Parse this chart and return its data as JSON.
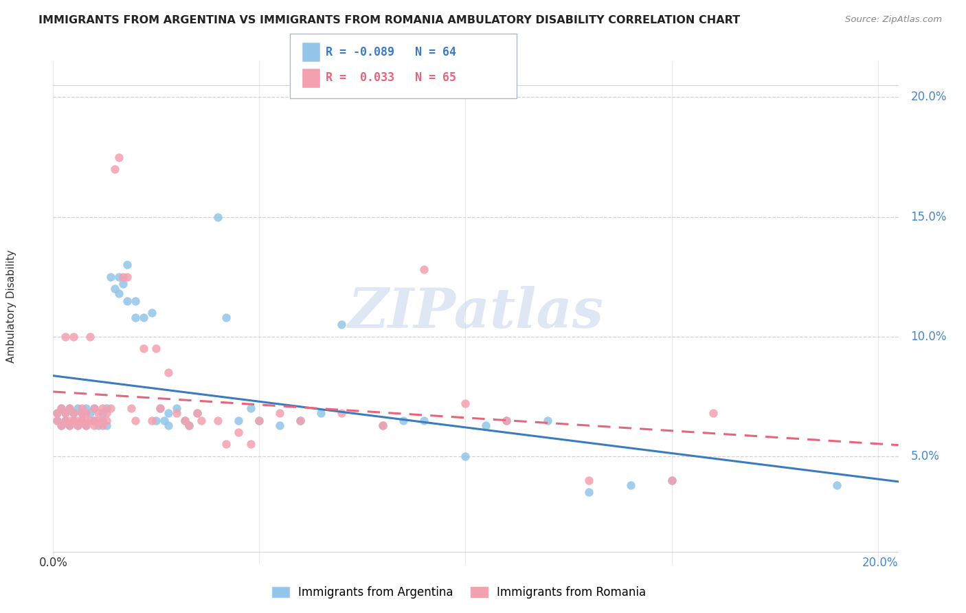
{
  "title": "IMMIGRANTS FROM ARGENTINA VS IMMIGRANTS FROM ROMANIA AMBULATORY DISABILITY CORRELATION CHART",
  "source": "Source: ZipAtlas.com",
  "ylabel": "Ambulatory Disability",
  "right_yticks": [
    "5.0%",
    "10.0%",
    "15.0%",
    "20.0%"
  ],
  "right_ytick_vals": [
    0.05,
    0.1,
    0.15,
    0.2
  ],
  "xlim": [
    0.0,
    0.205
  ],
  "ylim": [
    0.005,
    0.215
  ],
  "argentina_color": "#92C5E8",
  "romania_color": "#F4A0B0",
  "argentina_line_color": "#3B7BBF",
  "romania_line_color": "#E8647A",
  "argentina_R": -0.089,
  "argentina_N": 64,
  "romania_R": 0.033,
  "romania_N": 65,
  "legend_label_argentina": "Immigrants from Argentina",
  "legend_label_romania": "Immigrants from Romania",
  "watermark": "ZIPatlas",
  "argentina_points": [
    [
      0.001,
      0.068
    ],
    [
      0.001,
      0.065
    ],
    [
      0.002,
      0.063
    ],
    [
      0.002,
      0.07
    ],
    [
      0.003,
      0.068
    ],
    [
      0.003,
      0.065
    ],
    [
      0.004,
      0.07
    ],
    [
      0.004,
      0.063
    ],
    [
      0.005,
      0.065
    ],
    [
      0.005,
      0.068
    ],
    [
      0.006,
      0.07
    ],
    [
      0.006,
      0.063
    ],
    [
      0.007,
      0.068
    ],
    [
      0.007,
      0.065
    ],
    [
      0.008,
      0.07
    ],
    [
      0.008,
      0.063
    ],
    [
      0.009,
      0.068
    ],
    [
      0.01,
      0.07
    ],
    [
      0.01,
      0.065
    ],
    [
      0.011,
      0.063
    ],
    [
      0.012,
      0.065
    ],
    [
      0.012,
      0.068
    ],
    [
      0.013,
      0.07
    ],
    [
      0.013,
      0.063
    ],
    [
      0.014,
      0.125
    ],
    [
      0.015,
      0.12
    ],
    [
      0.016,
      0.125
    ],
    [
      0.016,
      0.118
    ],
    [
      0.017,
      0.122
    ],
    [
      0.018,
      0.13
    ],
    [
      0.018,
      0.115
    ],
    [
      0.02,
      0.115
    ],
    [
      0.02,
      0.108
    ],
    [
      0.022,
      0.108
    ],
    [
      0.024,
      0.11
    ],
    [
      0.025,
      0.065
    ],
    [
      0.026,
      0.07
    ],
    [
      0.027,
      0.065
    ],
    [
      0.028,
      0.068
    ],
    [
      0.028,
      0.063
    ],
    [
      0.03,
      0.07
    ],
    [
      0.032,
      0.065
    ],
    [
      0.033,
      0.063
    ],
    [
      0.035,
      0.068
    ],
    [
      0.04,
      0.15
    ],
    [
      0.042,
      0.108
    ],
    [
      0.045,
      0.065
    ],
    [
      0.048,
      0.07
    ],
    [
      0.05,
      0.065
    ],
    [
      0.055,
      0.063
    ],
    [
      0.06,
      0.065
    ],
    [
      0.065,
      0.068
    ],
    [
      0.07,
      0.105
    ],
    [
      0.08,
      0.063
    ],
    [
      0.085,
      0.065
    ],
    [
      0.09,
      0.065
    ],
    [
      0.1,
      0.05
    ],
    [
      0.105,
      0.063
    ],
    [
      0.11,
      0.065
    ],
    [
      0.12,
      0.065
    ],
    [
      0.13,
      0.035
    ],
    [
      0.14,
      0.038
    ],
    [
      0.15,
      0.04
    ],
    [
      0.19,
      0.038
    ]
  ],
  "romania_points": [
    [
      0.001,
      0.068
    ],
    [
      0.001,
      0.065
    ],
    [
      0.002,
      0.07
    ],
    [
      0.002,
      0.063
    ],
    [
      0.003,
      0.065
    ],
    [
      0.003,
      0.068
    ],
    [
      0.003,
      0.1
    ],
    [
      0.004,
      0.065
    ],
    [
      0.004,
      0.07
    ],
    [
      0.004,
      0.063
    ],
    [
      0.005,
      0.065
    ],
    [
      0.005,
      0.068
    ],
    [
      0.005,
      0.1
    ],
    [
      0.006,
      0.065
    ],
    [
      0.006,
      0.063
    ],
    [
      0.007,
      0.068
    ],
    [
      0.007,
      0.065
    ],
    [
      0.007,
      0.07
    ],
    [
      0.008,
      0.065
    ],
    [
      0.008,
      0.068
    ],
    [
      0.008,
      0.063
    ],
    [
      0.009,
      0.065
    ],
    [
      0.009,
      0.1
    ],
    [
      0.01,
      0.07
    ],
    [
      0.01,
      0.063
    ],
    [
      0.01,
      0.065
    ],
    [
      0.011,
      0.068
    ],
    [
      0.011,
      0.065
    ],
    [
      0.012,
      0.07
    ],
    [
      0.012,
      0.063
    ],
    [
      0.012,
      0.065
    ],
    [
      0.013,
      0.068
    ],
    [
      0.013,
      0.065
    ],
    [
      0.014,
      0.07
    ],
    [
      0.015,
      0.17
    ],
    [
      0.016,
      0.175
    ],
    [
      0.017,
      0.125
    ],
    [
      0.018,
      0.125
    ],
    [
      0.019,
      0.07
    ],
    [
      0.02,
      0.065
    ],
    [
      0.022,
      0.095
    ],
    [
      0.024,
      0.065
    ],
    [
      0.025,
      0.095
    ],
    [
      0.026,
      0.07
    ],
    [
      0.028,
      0.085
    ],
    [
      0.03,
      0.068
    ],
    [
      0.032,
      0.065
    ],
    [
      0.033,
      0.063
    ],
    [
      0.035,
      0.068
    ],
    [
      0.036,
      0.065
    ],
    [
      0.04,
      0.065
    ],
    [
      0.042,
      0.055
    ],
    [
      0.045,
      0.06
    ],
    [
      0.048,
      0.055
    ],
    [
      0.05,
      0.065
    ],
    [
      0.055,
      0.068
    ],
    [
      0.06,
      0.065
    ],
    [
      0.07,
      0.068
    ],
    [
      0.08,
      0.063
    ],
    [
      0.09,
      0.128
    ],
    [
      0.1,
      0.072
    ],
    [
      0.11,
      0.065
    ],
    [
      0.13,
      0.04
    ],
    [
      0.15,
      0.04
    ],
    [
      0.16,
      0.068
    ]
  ]
}
